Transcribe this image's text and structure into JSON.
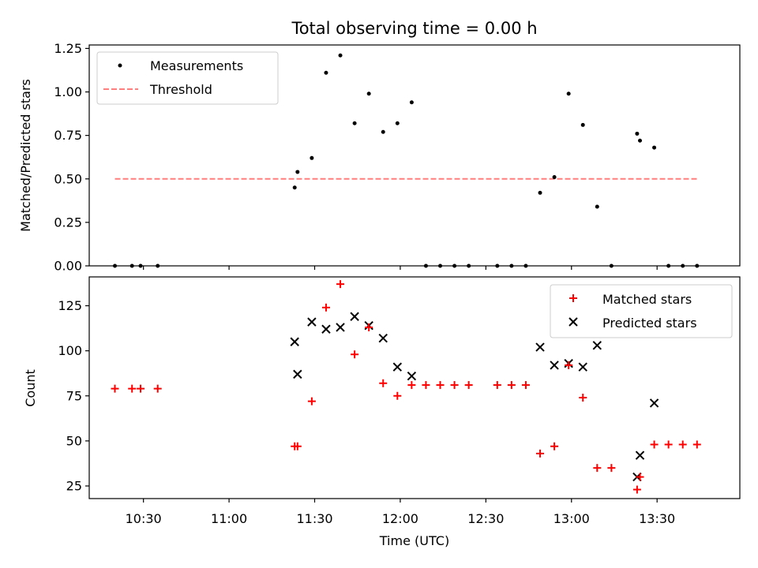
{
  "chart_data": [
    {
      "type": "scatter",
      "title": "Total observing time = 0.00 h",
      "ylabel": "Matched/Predicted stars",
      "xlabel": "",
      "ylim": [
        0,
        1.27
      ],
      "yticks": [
        "0.00",
        "0.25",
        "0.50",
        "0.75",
        "1.00",
        "1.25"
      ],
      "ytick_values": [
        0,
        0.25,
        0.5,
        0.75,
        1.0,
        1.25
      ],
      "grid": false,
      "legend": "top-left",
      "series": [
        {
          "name": "Measurements",
          "marker": "dot",
          "color": "#000000",
          "x": [
            "10:20",
            "10:26",
            "10:29",
            "10:35",
            "11:23",
            "11:24",
            "11:29",
            "11:34",
            "11:39",
            "11:44",
            "11:49",
            "11:54",
            "11:59",
            "12:04",
            "12:09",
            "12:14",
            "12:19",
            "12:24",
            "12:34",
            "12:39",
            "12:44",
            "12:49",
            "12:54",
            "12:59",
            "13:04",
            "13:09",
            "13:14",
            "13:23",
            "13:24",
            "13:29",
            "13:34",
            "13:39",
            "13:44"
          ],
          "y": [
            0,
            0,
            0,
            0,
            0.45,
            0.54,
            0.62,
            1.11,
            1.21,
            0.82,
            0.99,
            0.77,
            0.82,
            0.94,
            0,
            0,
            0,
            0,
            0,
            0,
            0,
            0.42,
            0.51,
            0.99,
            0.81,
            0.34,
            0,
            0.76,
            0.72,
            0.68,
            0,
            0,
            0
          ]
        },
        {
          "name": "Threshold",
          "marker": "dashed-line",
          "color": "#ff7f7f",
          "x": [
            "10:20",
            "13:44"
          ],
          "y": [
            0.5,
            0.5
          ]
        }
      ]
    },
    {
      "type": "scatter",
      "xlabel": "Time (UTC)",
      "ylabel": "Count",
      "ylim": [
        18,
        141
      ],
      "yticks": [
        "25",
        "50",
        "75",
        "100",
        "125"
      ],
      "ytick_values": [
        25,
        50,
        75,
        100,
        125
      ],
      "xlim": [
        "10:11",
        "13:59"
      ],
      "xticks": [
        "10:30",
        "11:00",
        "11:30",
        "12:00",
        "12:30",
        "13:00",
        "13:30"
      ],
      "grid": false,
      "legend": "top-right",
      "series": [
        {
          "name": "Matched stars",
          "marker": "plus",
          "color": "#ff0000",
          "x": [
            "10:20",
            "10:26",
            "10:29",
            "10:35",
            "11:23",
            "11:24",
            "11:29",
            "11:34",
            "11:39",
            "11:44",
            "11:49",
            "11:54",
            "11:59",
            "12:04",
            "12:09",
            "12:14",
            "12:19",
            "12:24",
            "12:34",
            "12:39",
            "12:44",
            "12:49",
            "12:54",
            "12:59",
            "13:04",
            "13:09",
            "13:14",
            "13:23",
            "13:24",
            "13:29",
            "13:34",
            "13:39",
            "13:44"
          ],
          "y": [
            79,
            79,
            79,
            79,
            47,
            47,
            72,
            124,
            137,
            98,
            113,
            82,
            75,
            81,
            81,
            81,
            81,
            81,
            81,
            81,
            81,
            43,
            47,
            92,
            74,
            35,
            35,
            23,
            30,
            48,
            48,
            48,
            48
          ]
        },
        {
          "name": "Predicted stars",
          "marker": "x",
          "color": "#000000",
          "x": [
            "11:23",
            "11:24",
            "11:29",
            "11:34",
            "11:39",
            "11:44",
            "11:49",
            "11:54",
            "11:59",
            "12:04",
            "12:49",
            "12:54",
            "12:59",
            "13:04",
            "13:09",
            "13:23",
            "13:24",
            "13:29"
          ],
          "y": [
            105,
            87,
            116,
            112,
            113,
            119,
            114,
            107,
            91,
            86,
            102,
            92,
            93,
            91,
            103,
            30,
            42,
            71
          ]
        }
      ]
    }
  ]
}
